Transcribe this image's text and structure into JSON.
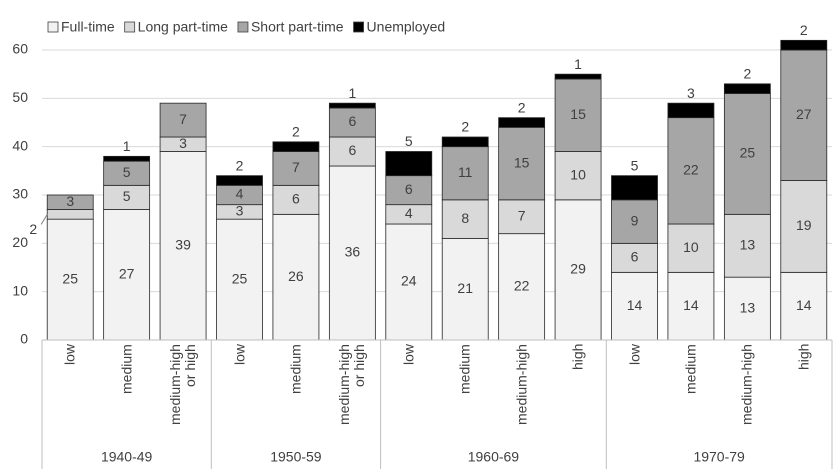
{
  "chart_data": {
    "type": "stacked-bar",
    "groups": [
      {
        "name": "1940-49",
        "categories": [
          "low",
          "medium",
          "medium-high or high"
        ]
      },
      {
        "name": "1950-59",
        "categories": [
          "low",
          "medium",
          "medium-high or high"
        ]
      },
      {
        "name": "1960-69",
        "categories": [
          "low",
          "medium",
          "medium-high",
          "high"
        ]
      },
      {
        "name": "1970-79",
        "categories": [
          "low",
          "medium",
          "medium-high",
          "high"
        ]
      }
    ],
    "series": [
      {
        "name": "Full-time",
        "color": "#f2f2f2",
        "values": [
          25,
          27,
          39,
          25,
          26,
          36,
          24,
          21,
          22,
          29,
          14,
          14,
          13,
          14
        ]
      },
      {
        "name": "Long part-time",
        "color": "#d9d9d9",
        "values": [
          2,
          5,
          3,
          3,
          6,
          6,
          4,
          8,
          7,
          10,
          6,
          10,
          13,
          19
        ]
      },
      {
        "name": "Short part-time",
        "color": "#a6a6a6",
        "values": [
          3,
          5,
          7,
          4,
          7,
          6,
          6,
          11,
          15,
          15,
          9,
          22,
          25,
          27
        ]
      },
      {
        "name": "Unemployed",
        "color": "#000000",
        "values": [
          null,
          1,
          null,
          2,
          2,
          1,
          5,
          2,
          2,
          1,
          5,
          3,
          2,
          2
        ]
      }
    ],
    "ylim": [
      0,
      60
    ],
    "yticks": [
      0,
      10,
      20,
      30,
      40,
      50,
      60
    ],
    "grid": true
  }
}
